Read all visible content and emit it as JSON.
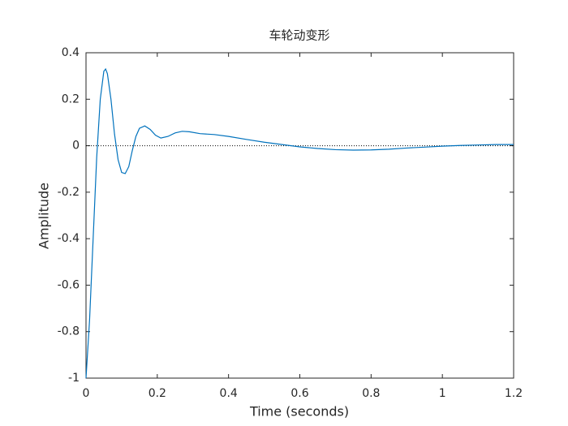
{
  "chart_data": {
    "type": "line",
    "title": "车轮动变形",
    "x_label": "Time (seconds)",
    "y_label": "Amplitude",
    "x": [
      0,
      0.01,
      0.02,
      0.03,
      0.04,
      0.05,
      0.055,
      0.06,
      0.07,
      0.08,
      0.09,
      0.1,
      0.11,
      0.12,
      0.13,
      0.14,
      0.15,
      0.165,
      0.18,
      0.195,
      0.21,
      0.23,
      0.25,
      0.27,
      0.29,
      0.32,
      0.36,
      0.4,
      0.45,
      0.5,
      0.55,
      0.6,
      0.65,
      0.7,
      0.75,
      0.8,
      0.85,
      0.9,
      0.95,
      1.0,
      1.05,
      1.1,
      1.15,
      1.2
    ],
    "series": [
      {
        "color": "#0072bd",
        "values": [
          -1,
          -0.75,
          -0.4,
          -0.05,
          0.2,
          0.32,
          0.33,
          0.31,
          0.2,
          0.05,
          -0.06,
          -0.115,
          -0.12,
          -0.09,
          -0.02,
          0.04,
          0.075,
          0.085,
          0.07,
          0.045,
          0.033,
          0.04,
          0.055,
          0.062,
          0.06,
          0.052,
          0.048,
          0.04,
          0.027,
          0.015,
          0.005,
          -0.005,
          -0.012,
          -0.017,
          -0.019,
          -0.018,
          -0.015,
          -0.01,
          -0.006,
          -0.002,
          0.001,
          0.003,
          0.005,
          0.005
        ]
      }
    ],
    "reference_y": 0,
    "xlim": [
      0,
      1.2
    ],
    "xticks": [
      0,
      0.2,
      0.4,
      0.6,
      0.8,
      1,
      1.2
    ],
    "ylim": [
      -1,
      0.4
    ],
    "yticks": [
      -1,
      -0.8,
      -0.6,
      -0.4,
      -0.2,
      0,
      0.2,
      0.4
    ]
  }
}
